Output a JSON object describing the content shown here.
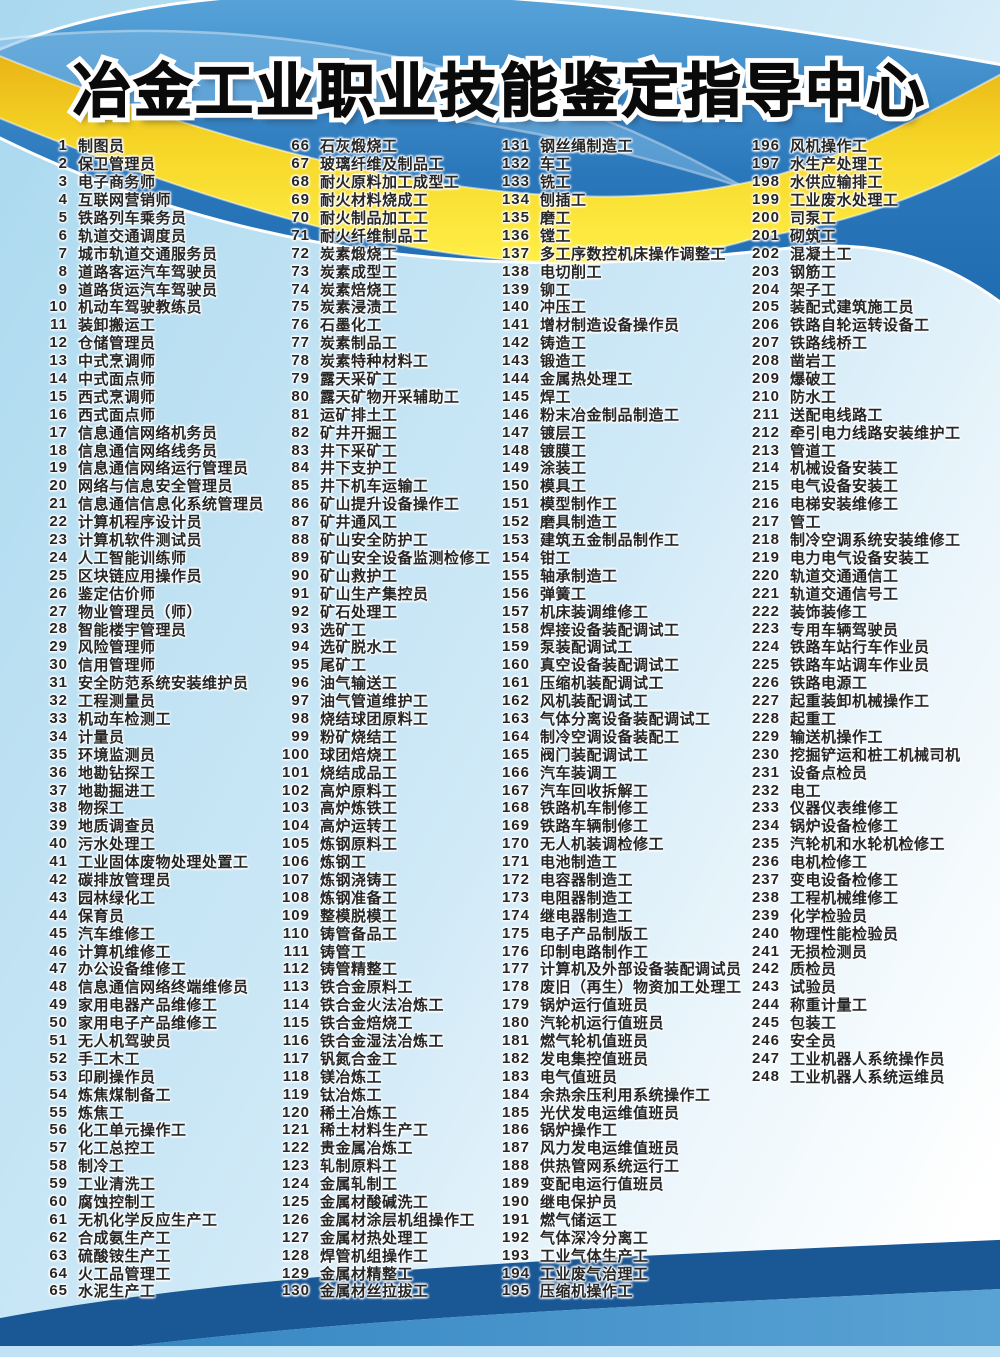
{
  "title": "冶金工业职业技能鉴定指导中心",
  "colors": {
    "band_blue_light": "#58a4da",
    "band_blue_dark": "#1f6bb1",
    "ribbon_gold": "#e8b214",
    "ribbon_yellow": "#ffef47",
    "bottom_navy": "#1a5795",
    "bottom_blue": "#3182c1",
    "bottom_strip": "#bfe2f4",
    "background_light_blue": "#c3e4f4",
    "text_dark": "#262626",
    "title_black": "#0a0a0a"
  },
  "list": {
    "columns": [
      {
        "start": 1,
        "end": 65
      },
      {
        "start": 66,
        "end": 130
      },
      {
        "start": 131,
        "end": 195
      },
      {
        "start": 196,
        "end": 248
      }
    ],
    "items": [
      "制图员",
      "保卫管理员",
      "电子商务师",
      "互联网营销师",
      "铁路列车乘务员",
      "轨道交通调度员",
      "城市轨道交通服务员",
      "道路客运汽车驾驶员",
      "道路货运汽车驾驶员",
      "机动车驾驶教练员",
      "装卸搬运工",
      "仓储管理员",
      "中式烹调师",
      "中式面点师",
      "西式烹调师",
      "西式面点师",
      "信息通信网络机务员",
      "信息通信网络线务员",
      "信息通信网络运行管理员",
      "网络与信息安全管理员",
      "信息通信信息化系统管理员",
      "计算机程序设计员",
      "计算机软件测试员",
      "人工智能训练师",
      "区块链应用操作员",
      "鉴定估价师",
      "物业管理员（师）",
      "智能楼宇管理员",
      "风险管理师",
      "信用管理师",
      "安全防范系统安装维护员",
      "工程测量员",
      "机动车检测工",
      "计量员",
      "环境监测员",
      "地勘钻探工",
      "地勘掘进工",
      "物探工",
      "地质调查员",
      "污水处理工",
      "工业固体废物处理处置工",
      "碳排放管理员",
      "园林绿化工",
      "保育员",
      "汽车维修工",
      "计算机维修工",
      "办公设备维修工",
      "信息通信网络终端维修员",
      "家用电器产品维修工",
      "家用电子产品维修工",
      "无人机驾驶员",
      "手工木工",
      "印刷操作员",
      "炼焦煤制备工",
      "炼焦工",
      "化工单元操作工",
      "化工总控工",
      "制冷工",
      "工业清洗工",
      "腐蚀控制工",
      "无机化学反应生产工",
      "合成氨生产工",
      "硫酸铵生产工",
      "火工品管理工",
      "水泥生产工",
      "石灰煅烧工",
      "玻璃纤维及制品工",
      "耐火原料加工成型工",
      "耐火材料烧成工",
      "耐火制品加工工",
      "耐火纤维制品工",
      "炭素煅烧工",
      "炭素成型工",
      "炭素焙烧工",
      "炭素浸渍工",
      "石墨化工",
      "炭素制品工",
      "炭素特种材料工",
      "露天采矿工",
      "露天矿物开采辅助工",
      "运矿排土工",
      "矿井开掘工",
      "井下采矿工",
      "井下支护工",
      "井下机车运输工",
      "矿山提升设备操作工",
      "矿井通风工",
      "矿山安全防护工",
      "矿山安全设备监测检修工",
      "矿山救护工",
      "矿山生产集控员",
      "矿石处理工",
      "选矿工",
      "选矿脱水工",
      "尾矿工",
      "油气输送工",
      "油气管道维护工",
      "烧结球团原料工",
      "粉矿烧结工",
      "球团焙烧工",
      "烧结成品工",
      "高炉原料工",
      "高炉炼铁工",
      "高炉运转工",
      "炼钢原料工",
      "炼钢工",
      "炼钢浇铸工",
      "炼钢准备工",
      "整模脱模工",
      "铸管备品工",
      "铸管工",
      "铸管精整工",
      "铁合金原料工",
      "铁合金火法冶炼工",
      "铁合金焙烧工",
      "铁合金湿法冶炼工",
      "钒氮合金工",
      "镁冶炼工",
      "钛冶炼工",
      "稀土冶炼工",
      "稀土材料生产工",
      "贵金属冶炼工",
      "轧制原料工",
      "金属轧制工",
      "金属材酸碱洗工",
      "金属材涂层机组操作工",
      "金属材热处理工",
      "焊管机组操作工",
      "金属材精整工",
      "金属材丝拉拔工",
      "钢丝绳制造工",
      "车工",
      "铣工",
      "刨插工",
      "磨工",
      "镗工",
      "多工序数控机床操作调整工",
      "电切削工",
      "铆工",
      "冲压工",
      "增材制造设备操作员",
      "铸造工",
      "锻造工",
      "金属热处理工",
      "焊工",
      "粉末冶金制品制造工",
      "镀层工",
      "镀膜工",
      "涂装工",
      "模具工",
      "模型制作工",
      "磨具制造工",
      "建筑五金制品制作工",
      "钳工",
      "轴承制造工",
      "弹簧工",
      "机床装调维修工",
      "焊接设备装配调试工",
      "泵装配调试工",
      "真空设备装配调试工",
      "压缩机装配调试工",
      "风机装配调试工",
      "气体分离设备装配调试工",
      "制冷空调设备装配工",
      "阀门装配调试工",
      "汽车装调工",
      "汽车回收拆解工",
      "铁路机车制修工",
      "铁路车辆制修工",
      "无人机装调检修工",
      "电池制造工",
      "电容器制造工",
      "电阻器制造工",
      "继电器制造工",
      "电子产品制版工",
      "印制电路制作工",
      "计算机及外部设备装配调试员",
      "废旧（再生）物资加工处理工",
      "锅炉运行值班员",
      "汽轮机运行值班员",
      "燃气轮机值班员",
      "发电集控值班员",
      "电气值班员",
      "余热余压利用系统操作工",
      "光伏发电运维值班员",
      "锅炉操作工",
      "风力发电运维值班员",
      "供热管网系统运行工",
      "变配电运行值班员",
      "继电保护员",
      "燃气储运工",
      "气体深冷分离工",
      "工业气体生产工",
      "工业废气治理工",
      "压缩机操作工",
      "风机操作工",
      "水生产处理工",
      "水供应输排工",
      "工业废水处理工",
      "司泵工",
      "砌筑工",
      "混凝土工",
      "钢筋工",
      "架子工",
      "装配式建筑施工员",
      "铁路自轮运转设备工",
      "铁路线桥工",
      "凿岩工",
      "爆破工",
      "防水工",
      "送配电线路工",
      "牵引电力线路安装维护工",
      "管道工",
      "机械设备安装工",
      "电气设备安装工",
      "电梯安装维修工",
      "管工",
      "制冷空调系统安装维修工",
      "电力电气设备安装工",
      "轨道交通通信工",
      "轨道交通信号工",
      "装饰装修工",
      "专用车辆驾驶员",
      "铁路车站行车作业员",
      "铁路车站调车作业员",
      "铁路电源工",
      "起重装卸机械操作工",
      "起重工",
      "输送机操作工",
      "挖掘铲运和桩工机械司机",
      "设备点检员",
      "电工",
      "仪器仪表维修工",
      "锅炉设备检修工",
      "汽轮机和水轮机检修工",
      "电机检修工",
      "变电设备检修工",
      "工程机械维修工",
      "化学检验员",
      "物理性能检验员",
      "无损检测员",
      "质检员",
      "试验员",
      "称重计量工",
      "包装工",
      "安全员",
      "工业机器人系统操作员",
      "工业机器人系统运维员"
    ]
  }
}
